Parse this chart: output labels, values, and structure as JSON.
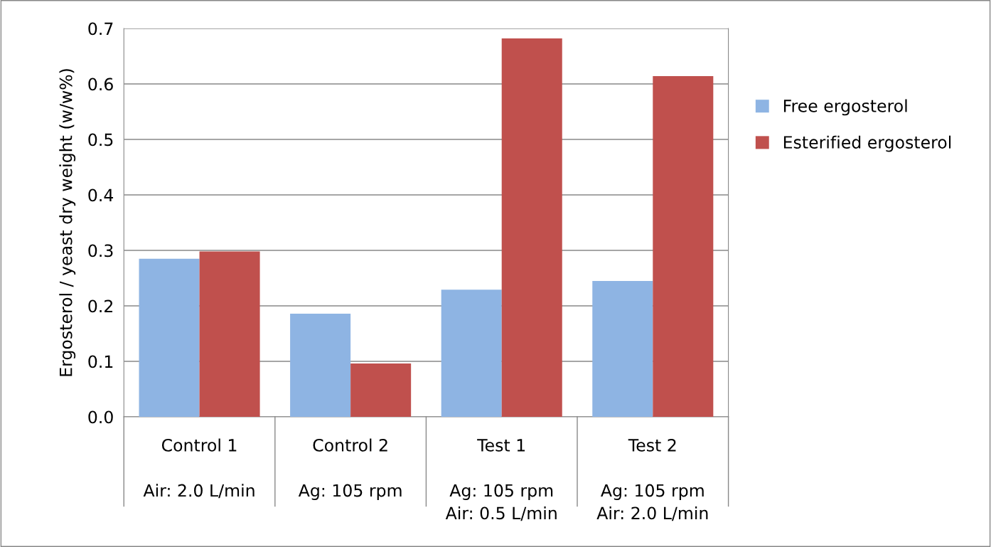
{
  "chart_data": {
    "type": "bar",
    "ylabel": "Ergosterol / yeast dry weight (w/w%)",
    "categories": [
      "Control 1\n\nAir: 2.0 L/min",
      "Control 2\n\nAg: 105 rpm",
      "Test 1\n\nAg: 105 rpm\nAir: 0.5 L/min",
      "Test 2\n\nAg: 105 rpm\nAir: 2.0 L/min"
    ],
    "series": [
      {
        "name": "Free ergosterol",
        "color": "#8eb4e3",
        "values": [
          0.285,
          0.186,
          0.229,
          0.245
        ]
      },
      {
        "name": "Esterified ergosterol",
        "color": "#c0504d",
        "values": [
          0.298,
          0.096,
          0.682,
          0.614
        ]
      }
    ],
    "ylim": [
      0,
      0.7
    ],
    "yticks": [
      {
        "value": 0,
        "label": "0.0"
      },
      0.1,
      0.2,
      0.3,
      0.4,
      0.5,
      0.6,
      0.7
    ],
    "grid": "y",
    "legend": "right"
  }
}
